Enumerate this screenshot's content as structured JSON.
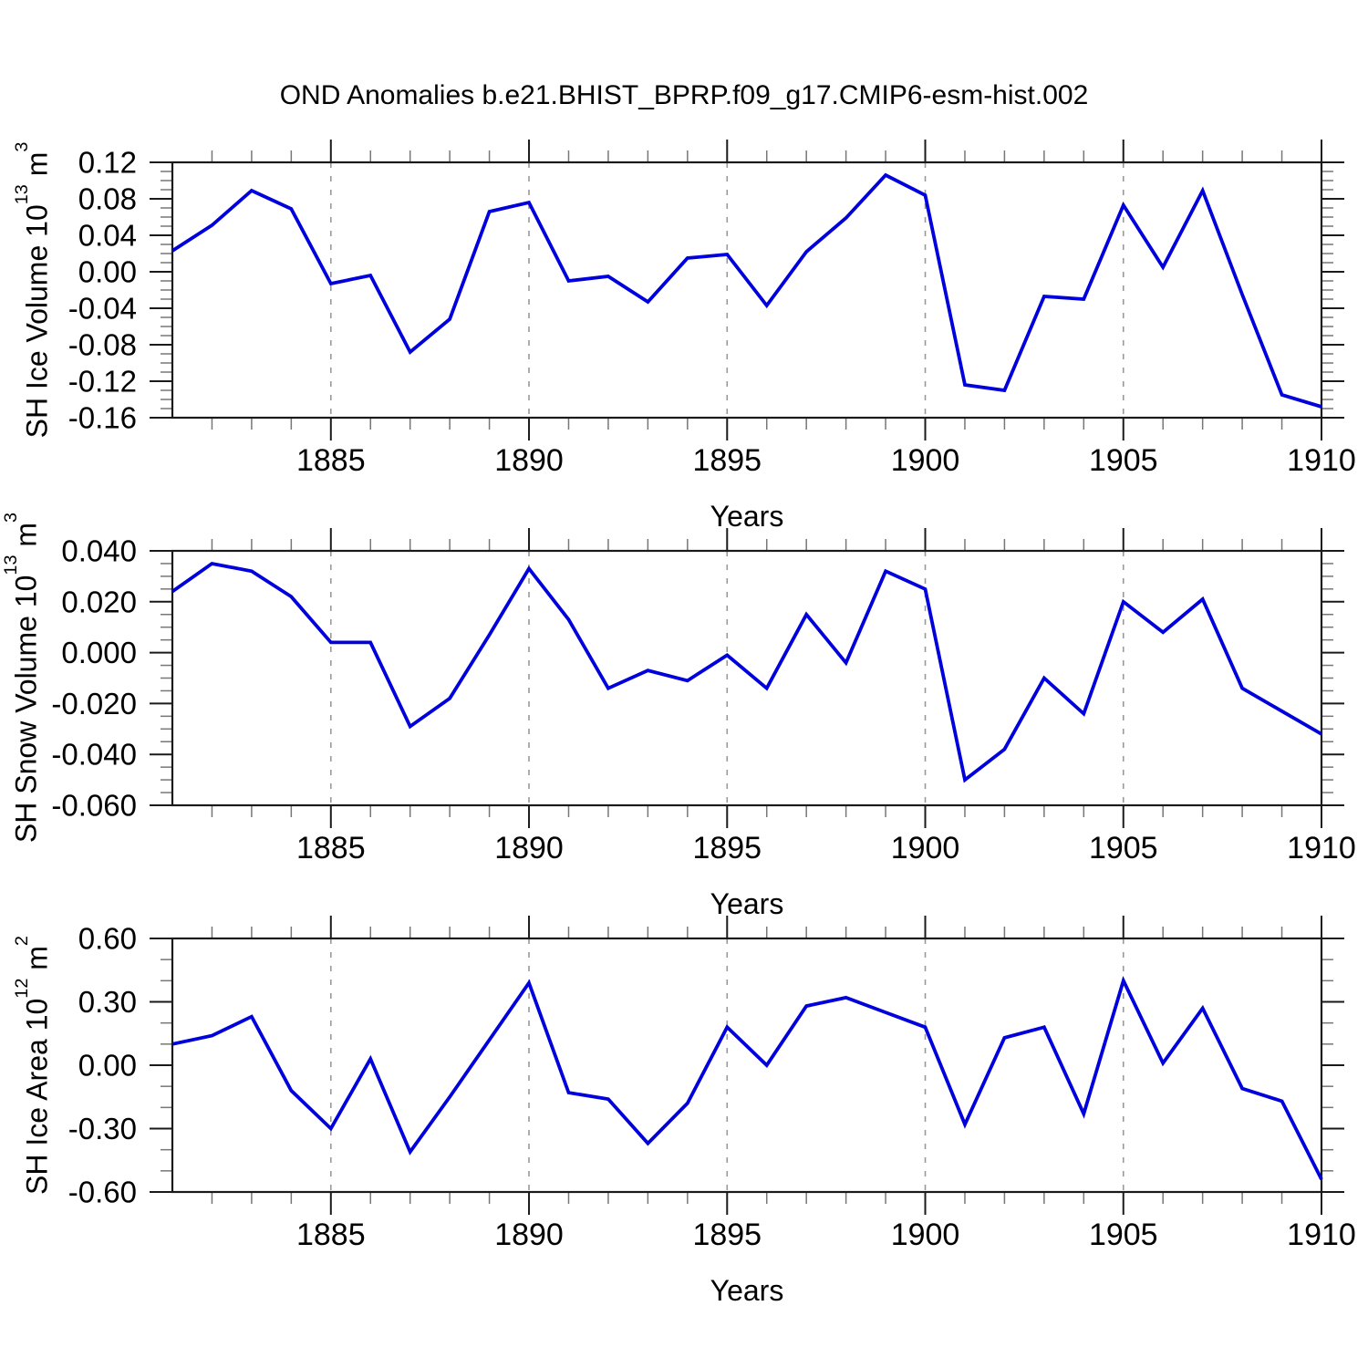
{
  "title": "OND Anomalies b.e21.BHIST_BPRP.f09_g17.CMIP6-esm-hist.002",
  "colors": {
    "line": "#0000dd",
    "frame": "#1a1a1a",
    "major_tick": "#1a1a1a",
    "minor_tick": "#777777",
    "gridline": "#999999",
    "text": "#000000"
  },
  "chart_data": [
    {
      "type": "line",
      "name": "sh-ice-volume",
      "ylabel": {
        "main": "SH Ice Volume 10",
        "exp": "13",
        "unit": " m",
        "unit_exp": "3"
      },
      "xlabel": "Years",
      "x": [
        1881,
        1882,
        1883,
        1884,
        1885,
        1886,
        1887,
        1888,
        1889,
        1890,
        1891,
        1892,
        1893,
        1894,
        1895,
        1896,
        1897,
        1898,
        1899,
        1900,
        1901,
        1902,
        1903,
        1904,
        1905,
        1906,
        1907,
        1908,
        1909,
        1910
      ],
      "values": [
        0.023,
        0.051,
        0.089,
        0.069,
        -0.013,
        -0.004,
        -0.088,
        -0.052,
        0.066,
        0.076,
        -0.01,
        -0.005,
        -0.033,
        0.015,
        0.019,
        -0.037,
        0.022,
        0.059,
        0.106,
        0.084,
        -0.124,
        -0.13,
        -0.027,
        -0.03,
        0.073,
        0.005,
        0.089,
        -0.025,
        -0.135,
        -0.148
      ],
      "xlim": [
        1881,
        1910
      ],
      "ylim": [
        -0.16,
        0.12
      ],
      "yticks": [
        {
          "value": 0.12,
          "label": "0.12"
        },
        {
          "value": 0.08,
          "label": "0.08"
        },
        {
          "value": 0.04,
          "label": "0.04"
        },
        {
          "value": 0.0,
          "label": "0.00"
        },
        {
          "value": -0.04,
          "label": "-0.04"
        },
        {
          "value": -0.08,
          "label": "-0.08"
        },
        {
          "value": -0.12,
          "label": "-0.12"
        },
        {
          "value": -0.16,
          "label": "-0.16"
        }
      ],
      "yminor_step": 0.01,
      "xticks": [
        {
          "value": 1885,
          "label": "1885"
        },
        {
          "value": 1890,
          "label": "1890"
        },
        {
          "value": 1895,
          "label": "1895"
        },
        {
          "value": 1900,
          "label": "1900"
        },
        {
          "value": 1905,
          "label": "1905"
        },
        {
          "value": 1910,
          "label": "1910"
        }
      ],
      "grid_years": [
        1885,
        1890,
        1895,
        1900,
        1905
      ],
      "grid_on": true,
      "legend": "none"
    },
    {
      "type": "line",
      "name": "sh-snow-volume",
      "ylabel": {
        "main": "SH Snow Volume 10",
        "exp": "13",
        "unit": " m",
        "unit_exp": "3"
      },
      "xlabel": "Years",
      "x": [
        1881,
        1882,
        1883,
        1884,
        1885,
        1886,
        1887,
        1888,
        1889,
        1890,
        1891,
        1892,
        1893,
        1894,
        1895,
        1896,
        1897,
        1898,
        1899,
        1900,
        1901,
        1902,
        1903,
        1904,
        1905,
        1906,
        1907,
        1908,
        1909,
        1910
      ],
      "values": [
        0.024,
        0.035,
        0.032,
        0.022,
        0.004,
        0.004,
        -0.029,
        -0.018,
        0.007,
        0.033,
        0.013,
        -0.014,
        -0.007,
        -0.011,
        -0.001,
        -0.014,
        0.015,
        -0.004,
        0.032,
        0.025,
        -0.05,
        -0.038,
        -0.01,
        -0.024,
        0.02,
        0.008,
        0.021,
        -0.014,
        -0.023,
        -0.032
      ],
      "xlim": [
        1881,
        1910
      ],
      "ylim": [
        -0.06,
        0.04
      ],
      "yticks": [
        {
          "value": 0.04,
          "label": "0.040"
        },
        {
          "value": 0.02,
          "label": "0.020"
        },
        {
          "value": 0.0,
          "label": "0.000"
        },
        {
          "value": -0.02,
          "label": "-0.020"
        },
        {
          "value": -0.04,
          "label": "-0.040"
        },
        {
          "value": -0.06,
          "label": "-0.060"
        }
      ],
      "yminor_step": 0.005,
      "xticks": [
        {
          "value": 1885,
          "label": "1885"
        },
        {
          "value": 1890,
          "label": "1890"
        },
        {
          "value": 1895,
          "label": "1895"
        },
        {
          "value": 1900,
          "label": "1900"
        },
        {
          "value": 1905,
          "label": "1905"
        },
        {
          "value": 1910,
          "label": "1910"
        }
      ],
      "grid_years": [
        1885,
        1890,
        1895,
        1900,
        1905
      ],
      "grid_on": true,
      "legend": "none"
    },
    {
      "type": "line",
      "name": "sh-ice-area",
      "ylabel": {
        "main": "SH Ice Area 10",
        "exp": "12",
        "unit": " m",
        "unit_exp": "2"
      },
      "xlabel": "Years",
      "x": [
        1881,
        1882,
        1883,
        1884,
        1885,
        1886,
        1887,
        1888,
        1889,
        1890,
        1891,
        1892,
        1893,
        1894,
        1895,
        1896,
        1897,
        1898,
        1899,
        1900,
        1901,
        1902,
        1903,
        1904,
        1905,
        1906,
        1907,
        1908,
        1909,
        1910
      ],
      "values": [
        0.1,
        0.14,
        0.23,
        -0.12,
        -0.3,
        0.03,
        -0.41,
        -0.15,
        0.12,
        0.39,
        -0.13,
        -0.16,
        -0.37,
        -0.18,
        0.18,
        0.0,
        0.28,
        0.32,
        0.25,
        0.18,
        -0.28,
        0.13,
        0.18,
        -0.23,
        0.4,
        0.01,
        0.27,
        -0.11,
        -0.17,
        -0.54
      ],
      "xlim": [
        1881,
        1910
      ],
      "ylim": [
        -0.6,
        0.6
      ],
      "yticks": [
        {
          "value": 0.6,
          "label": "0.60"
        },
        {
          "value": 0.3,
          "label": "0.30"
        },
        {
          "value": 0.0,
          "label": "0.00"
        },
        {
          "value": -0.3,
          "label": "-0.30"
        },
        {
          "value": -0.6,
          "label": "-0.60"
        }
      ],
      "yminor_step": 0.1,
      "xticks": [
        {
          "value": 1885,
          "label": "1885"
        },
        {
          "value": 1890,
          "label": "1890"
        },
        {
          "value": 1895,
          "label": "1895"
        },
        {
          "value": 1900,
          "label": "1900"
        },
        {
          "value": 1905,
          "label": "1905"
        },
        {
          "value": 1910,
          "label": "1910"
        }
      ],
      "grid_years": [
        1885,
        1890,
        1895,
        1900,
        1905
      ],
      "grid_on": true,
      "legend": "none"
    }
  ]
}
